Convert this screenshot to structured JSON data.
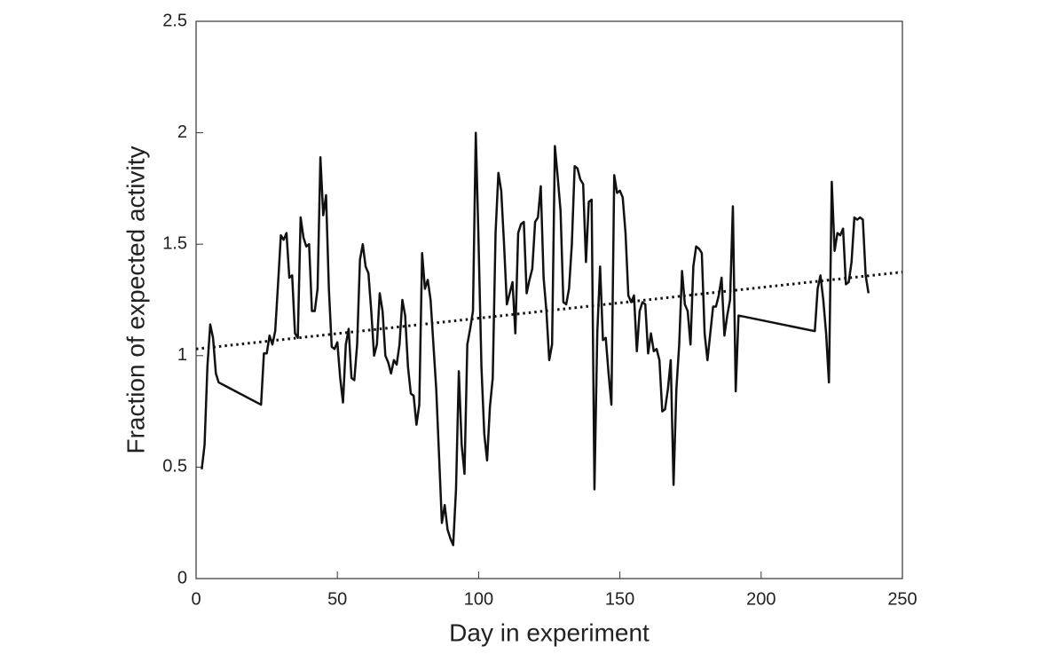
{
  "chart_data": {
    "type": "line",
    "xlabel": "Day in experiment",
    "ylabel": "Fraction of expected activity",
    "xlim": [
      0,
      250
    ],
    "ylim": [
      0,
      2.5
    ],
    "xticks": [
      0,
      50,
      100,
      150,
      200,
      250
    ],
    "yticks": [
      0,
      0.5,
      1,
      1.5,
      2,
      2.5
    ],
    "series": [
      {
        "color": "#111111",
        "style": "solid",
        "x": [
          2,
          3,
          4,
          5,
          6,
          7,
          8,
          23,
          24,
          25,
          26,
          27,
          28,
          29,
          30,
          31,
          32,
          33,
          34,
          35,
          36,
          37,
          38,
          39,
          40,
          41,
          42,
          43,
          44,
          45,
          46,
          47,
          48,
          49,
          50,
          51,
          52,
          53,
          54,
          55,
          56,
          57,
          58,
          59,
          60,
          61,
          62,
          63,
          64,
          65,
          66,
          67,
          68,
          69,
          70,
          71,
          72,
          73,
          74,
          75,
          76,
          77,
          78,
          79,
          80,
          81,
          82,
          83,
          84,
          85,
          86,
          87,
          88,
          89,
          90,
          91,
          92,
          93,
          94,
          95,
          96,
          97,
          98,
          99,
          100,
          101,
          102,
          103,
          104,
          105,
          106,
          107,
          108,
          109,
          110,
          111,
          112,
          113,
          114,
          115,
          116,
          117,
          118,
          119,
          120,
          121,
          122,
          123,
          124,
          125,
          126,
          127,
          128,
          129,
          130,
          131,
          132,
          133,
          134,
          135,
          136,
          137,
          138,
          139,
          140,
          141,
          142,
          143,
          144,
          145,
          146,
          147,
          148,
          149,
          150,
          151,
          152,
          153,
          154,
          155,
          156,
          157,
          158,
          159,
          160,
          161,
          162,
          163,
          164,
          165,
          166,
          167,
          168,
          169,
          170,
          171,
          172,
          173,
          174,
          175,
          176,
          177,
          178,
          179,
          180,
          181,
          182,
          183,
          184,
          185,
          186,
          187,
          188,
          189,
          190,
          191,
          192,
          219,
          220,
          221,
          222,
          223,
          224,
          225,
          226,
          227,
          228,
          229,
          230,
          231,
          232,
          233,
          234,
          235,
          236,
          237,
          238
        ],
        "values": [
          0.49,
          0.6,
          0.95,
          1.14,
          1.08,
          0.92,
          0.88,
          0.78,
          1.01,
          1.01,
          1.09,
          1.05,
          1.11,
          1.32,
          1.54,
          1.52,
          1.55,
          1.35,
          1.36,
          1.1,
          1.08,
          1.62,
          1.53,
          1.49,
          1.5,
          1.2,
          1.2,
          1.3,
          1.89,
          1.63,
          1.72,
          1.3,
          1.04,
          1.03,
          1.06,
          0.9,
          0.79,
          1.05,
          1.12,
          0.9,
          0.89,
          1.05,
          1.43,
          1.5,
          1.4,
          1.37,
          1.2,
          1.0,
          1.05,
          1.28,
          1.2,
          1.0,
          0.97,
          0.92,
          0.98,
          0.96,
          1.05,
          1.25,
          1.18,
          0.95,
          0.83,
          0.82,
          0.69,
          0.78,
          1.46,
          1.3,
          1.34,
          1.25,
          1.05,
          0.85,
          0.55,
          0.25,
          0.33,
          0.22,
          0.18,
          0.15,
          0.4,
          0.93,
          0.6,
          0.47,
          1.05,
          1.12,
          1.2,
          2.0,
          1.5,
          0.95,
          0.65,
          0.53,
          0.77,
          0.9,
          1.55,
          1.82,
          1.74,
          1.5,
          1.23,
          1.28,
          1.33,
          1.1,
          1.55,
          1.59,
          1.6,
          1.28,
          1.34,
          1.39,
          1.6,
          1.62,
          1.76,
          1.35,
          1.2,
          0.98,
          1.05,
          1.94,
          1.8,
          1.65,
          1.24,
          1.23,
          1.3,
          1.5,
          1.85,
          1.84,
          1.79,
          1.77,
          1.42,
          1.69,
          1.7,
          0.4,
          1.1,
          1.4,
          1.07,
          1.08,
          0.92,
          0.78,
          1.81,
          1.73,
          1.74,
          1.71,
          1.55,
          1.27,
          1.24,
          1.27,
          1.02,
          1.2,
          1.24,
          1.23,
          1.01,
          1.1,
          1.02,
          1.03,
          0.98,
          0.75,
          0.76,
          0.85,
          0.98,
          0.42,
          0.85,
          1.05,
          1.38,
          1.23,
          1.2,
          1.05,
          1.4,
          1.49,
          1.48,
          1.46,
          1.1,
          0.98,
          1.1,
          1.22,
          1.22,
          1.27,
          1.35,
          1.09,
          1.18,
          1.25,
          1.67,
          0.84,
          1.18,
          1.11,
          1.3,
          1.36,
          1.25,
          1.1,
          0.88,
          1.78,
          1.47,
          1.55,
          1.54,
          1.57,
          1.32,
          1.33,
          1.42,
          1.62,
          1.61,
          1.62,
          1.61,
          1.36,
          1.28
        ]
      },
      {
        "color": "#111111",
        "style": "dotted",
        "x": [
          0,
          250
        ],
        "values": [
          1.03,
          1.375
        ]
      }
    ]
  }
}
